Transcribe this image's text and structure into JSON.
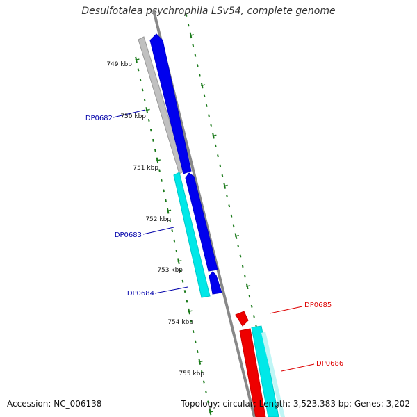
{
  "header": {
    "title": "Desulfotalea psychrophila LSv54, complete genome"
  },
  "footer": {
    "accession": "Accession: NC_006138",
    "summary": "Topology: circular; Length: 3,523,383 bp; Genes: 3,202"
  },
  "colors": {
    "forward_cds": "#0000ee",
    "reverse_cds": "#ee0000",
    "gene_forward": "#c0c0c0",
    "gene_reverse": "#00e8e8",
    "backbone": "#888888",
    "tick": "#1a7a1a",
    "label_forward": "#0000aa",
    "label_reverse": "#dd0000"
  },
  "scale_labels": [
    "749 kbp",
    "750 kbp",
    "751 kbp",
    "752 kbp",
    "753 kbp",
    "754 kbp",
    "755 kbp"
  ],
  "gene_labels": [
    {
      "text": "DP0682",
      "strand": "forward"
    },
    {
      "text": "DP0683",
      "strand": "forward"
    },
    {
      "text": "DP0684",
      "strand": "forward"
    },
    {
      "text": "DP0685",
      "strand": "reverse"
    },
    {
      "text": "DP0686",
      "strand": "reverse"
    }
  ]
}
